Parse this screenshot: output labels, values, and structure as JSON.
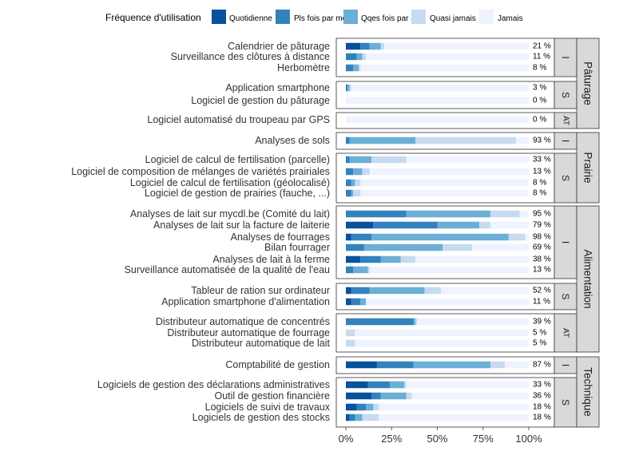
{
  "chart_data": {
    "type": "bar",
    "orientation": "horizontal-stacked-100",
    "legend": {
      "title": "Fréquence d'utilisation",
      "placement": "top",
      "items": [
        {
          "name": "Quotidienne",
          "color": "#08519c"
        },
        {
          "name": "Pls fois par mois",
          "color": "#3182bd"
        },
        {
          "name": "Qqes fois par an",
          "color": "#6baed6"
        },
        {
          "name": "Quasi jamais",
          "color": "#c6dbef"
        },
        {
          "name": "Jamais",
          "color": "#eff3ff"
        }
      ]
    },
    "x_axis": {
      "ticks": [
        "0%",
        "25%",
        "50%",
        "75%",
        "100%"
      ],
      "range": [
        0,
        100
      ]
    },
    "groups": [
      {
        "name": "Pâturage",
        "subgroups": [
          {
            "code": "I",
            "rows": [
              {
                "label": "Calendrier de pâturage",
                "pct": "21 %",
                "values": [
                  8,
                  5,
                  6,
                  2,
                  79
                ]
              },
              {
                "label": "Surveillance des clôtures à distance",
                "pct": "11 %",
                "values": [
                  0,
                  6,
                  3,
                  2,
                  89
                ]
              },
              {
                "label": "Herbomètre",
                "pct": "8 %",
                "values": [
                  0,
                  4,
                  3,
                  1,
                  92
                ]
              }
            ]
          },
          {
            "code": "S",
            "rows": [
              {
                "label": "Application smartphone",
                "pct": "3 %",
                "values": [
                  0,
                  1,
                  1,
                  1,
                  97
                ]
              },
              {
                "label": "Logiciel de gestion du pâturage",
                "pct": "0 %",
                "values": [
                  0,
                  0,
                  0,
                  0,
                  100
                ]
              }
            ]
          },
          {
            "code": "AT",
            "rows": [
              {
                "label": "Logiciel automatisé du troupeau par GPS",
                "pct": "0 %",
                "values": [
                  0,
                  0,
                  0,
                  0,
                  100
                ]
              }
            ]
          }
        ]
      },
      {
        "name": "Prairie",
        "subgroups": [
          {
            "code": "I",
            "rows": [
              {
                "label": "Analyses de sols",
                "pct": "93 %",
                "values": [
                  0,
                  2,
                  36,
                  55,
                  7
                ]
              }
            ]
          },
          {
            "code": "S",
            "rows": [
              {
                "label": "Logiciel de calcul de fertilisation (parcelle)",
                "pct": "33 %",
                "values": [
                  0,
                  2,
                  12,
                  19,
                  67
                ]
              },
              {
                "label": "Logiciel de composition de mélanges de variétés prairiales",
                "pct": "13 %",
                "values": [
                  0,
                  4,
                  5,
                  4,
                  87
                ]
              },
              {
                "label": "Logiciel de calcul de fertilisation (géolocalisé)",
                "pct": "8 %",
                "values": [
                  0,
                  3,
                  2,
                  3,
                  92
                ]
              },
              {
                "label": "Logiciel de gestion de prairies (fauche, ...)",
                "pct": "8 %",
                "values": [
                  0,
                  3,
                  1,
                  4,
                  92
                ]
              }
            ]
          }
        ]
      },
      {
        "name": "Alimentation",
        "subgroups": [
          {
            "code": "I",
            "rows": [
              {
                "label": "Analyses de lait sur mycdl.be (Comité du lait)",
                "pct": "95 %",
                "values": [
                  0,
                  33,
                  46,
                  16,
                  5
                ]
              },
              {
                "label": "Analyses de lait sur la facture de laiterie",
                "pct": "79 %",
                "values": [
                  15,
                  35,
                  23,
                  6,
                  21
                ]
              },
              {
                "label": "Analyses de fourrages",
                "pct": "98 %",
                "values": [
                  3,
                  11,
                  75,
                  9,
                  2
                ]
              },
              {
                "label": "Bilan fourrager",
                "pct": "69 %",
                "values": [
                  0,
                  10,
                  43,
                  16,
                  31
                ]
              },
              {
                "label": "Analyses de lait à la ferme",
                "pct": "38 %",
                "values": [
                  8,
                  11,
                  11,
                  8,
                  62
                ]
              },
              {
                "label": "Surveillance automatisée de la qualité de l'eau",
                "pct": "13 %",
                "values": [
                  0,
                  4,
                  8,
                  1,
                  87
                ]
              }
            ]
          },
          {
            "code": "S",
            "rows": [
              {
                "label": "Tableur de ration sur ordinateur",
                "pct": "52 %",
                "values": [
                  3,
                  10,
                  30,
                  9,
                  48
                ]
              },
              {
                "label": "Application smartphone d'alimentation",
                "pct": "11 %",
                "values": [
                  3,
                  5,
                  3,
                  0,
                  89
                ]
              }
            ]
          },
          {
            "code": "AT",
            "rows": [
              {
                "label": "Distributeur automatique de concentrés",
                "pct": "39 %",
                "values": [
                  0,
                  37,
                  1,
                  1,
                  61
                ]
              },
              {
                "label": "Distributeur automatique de fourrage",
                "pct": "5 %",
                "values": [
                  0,
                  0,
                  0,
                  5,
                  95
                ]
              },
              {
                "label": "Distributeur automatique de lait",
                "pct": "5 %",
                "values": [
                  0,
                  0,
                  0,
                  5,
                  95
                ]
              }
            ]
          }
        ]
      },
      {
        "name": "Technique",
        "subgroups": [
          {
            "code": "I",
            "rows": [
              {
                "label": "Comptabilité de gestion",
                "pct": "87 %",
                "values": [
                  17,
                  20,
                  42,
                  8,
                  13
                ]
              }
            ]
          },
          {
            "code": "S",
            "rows": [
              {
                "label": "Logiciels de gestion des déclarations administratives",
                "pct": "33 %",
                "values": [
                  12,
                  12,
                  8,
                  1,
                  67
                ]
              },
              {
                "label": "Outil de gestion financière",
                "pct": "36 %",
                "values": [
                  14,
                  5,
                  14,
                  3,
                  64
                ]
              },
              {
                "label": "Logiciels de suivi de travaux",
                "pct": "18 %",
                "values": [
                  6,
                  5,
                  4,
                  3,
                  82
                ]
              },
              {
                "label": "Logiciels de gestion des stocks",
                "pct": "18 %",
                "values": [
                  2,
                  3,
                  4,
                  9,
                  82
                ]
              }
            ]
          }
        ]
      }
    ]
  }
}
